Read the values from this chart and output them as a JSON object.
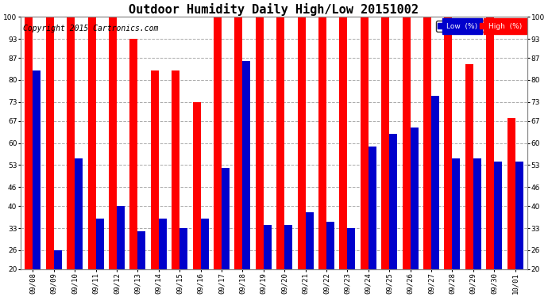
{
  "title": "Outdoor Humidity Daily High/Low 20151002",
  "copyright": "Copyright 2015 Cartronics.com",
  "dates": [
    "09/08",
    "09/09",
    "09/10",
    "09/11",
    "09/12",
    "09/13",
    "09/14",
    "09/15",
    "09/16",
    "09/17",
    "09/18",
    "09/19",
    "09/20",
    "09/21",
    "09/22",
    "09/23",
    "09/24",
    "09/25",
    "09/26",
    "09/27",
    "09/28",
    "09/29",
    "09/30",
    "10/01"
  ],
  "high": [
    100,
    100,
    100,
    100,
    100,
    93,
    83,
    83,
    73,
    100,
    100,
    100,
    100,
    100,
    100,
    100,
    100,
    100,
    100,
    100,
    100,
    85,
    100,
    68
  ],
  "low": [
    83,
    26,
    55,
    36,
    40,
    32,
    36,
    33,
    36,
    52,
    86,
    34,
    34,
    38,
    35,
    33,
    59,
    63,
    65,
    75,
    55,
    55,
    54,
    54
  ],
  "high_color": "#ff0000",
  "low_color": "#0000cc",
  "bg_color": "#ffffff",
  "grid_color": "#aaaaaa",
  "ylim_min": 20,
  "ylim_max": 100,
  "yticks": [
    20,
    26,
    33,
    40,
    46,
    53,
    60,
    67,
    73,
    80,
    87,
    93,
    100
  ],
  "bar_width": 0.38,
  "title_fontsize": 11,
  "tick_fontsize": 6.5,
  "copyright_fontsize": 7,
  "legend_low_label": "Low  (%)",
  "legend_high_label": "High  (%)"
}
